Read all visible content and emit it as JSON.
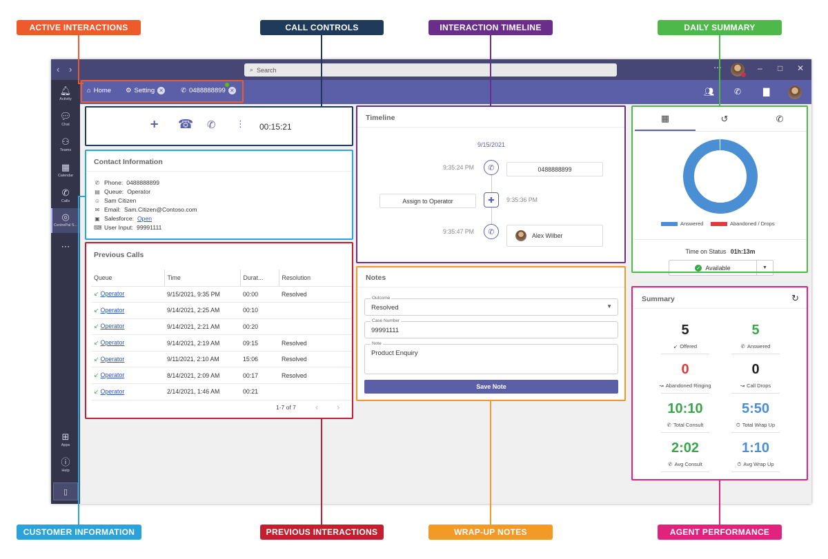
{
  "callouts": {
    "active_interactions": "ACTIVE INTERACTIONS",
    "call_controls": "CALL CONTROLS",
    "interaction_timeline": "INTERACTION TIMELINE",
    "daily_summary": "DAILY SUMMARY",
    "customer_information": "CUSTOMER INFORMATION",
    "previous_interactions": "PREVIOUS INTERACTIONS",
    "wrapup_notes": "WRAP-UP NOTES",
    "agent_performance": "AGENT PERFORMANCE"
  },
  "titlebar": {
    "search_placeholder": "Search"
  },
  "rail": {
    "items": [
      {
        "label": "Activity",
        "icon": "bell-icon"
      },
      {
        "label": "Chat",
        "icon": "chat-icon"
      },
      {
        "label": "Teams",
        "icon": "teams-icon"
      },
      {
        "label": "Calendar",
        "icon": "calendar-icon"
      },
      {
        "label": "Calls",
        "icon": "phone-icon"
      },
      {
        "label": "CentrePal S...",
        "icon": "centrepal-icon"
      },
      {
        "label": "Apps",
        "icon": "apps-icon"
      },
      {
        "label": "Help",
        "icon": "help-icon"
      }
    ]
  },
  "tabs": {
    "home": "Home",
    "setting": "Setting",
    "call": "0488888899"
  },
  "call_controls": {
    "timer": "00:15:21"
  },
  "contact": {
    "title": "Contact Information",
    "phone_label": "Phone:",
    "phone": "0488888899",
    "queue_label": "Queue:",
    "queue": "Operator",
    "name": "Sam Citizen",
    "email_label": "Email:",
    "email": "Sam.Citizen@Contoso.com",
    "salesforce_label": "Salesforce:",
    "salesforce_link": "Open",
    "user_input_label": "User Input:",
    "user_input": "99991111"
  },
  "previous_calls": {
    "title": "Previous Calls",
    "columns": [
      "Queue",
      "Time",
      "Durat...",
      "Resolution"
    ],
    "rows": [
      {
        "queue": "Operator",
        "time": "9/15/2021, 9:35 PM",
        "duration": "00:00",
        "resolution": "Resolved"
      },
      {
        "queue": "Operator",
        "time": "9/14/2021, 2:25 AM",
        "duration": "00:10",
        "resolution": ""
      },
      {
        "queue": "Operator",
        "time": "9/14/2021, 2:21 AM",
        "duration": "00:20",
        "resolution": ""
      },
      {
        "queue": "Operator",
        "time": "9/14/2021, 2:19 AM",
        "duration": "09:15",
        "resolution": "Resolved"
      },
      {
        "queue": "Operator",
        "time": "9/11/2021, 2:10 AM",
        "duration": "15:06",
        "resolution": "Resolved"
      },
      {
        "queue": "Operator",
        "time": "8/14/2021, 2:09 AM",
        "duration": "00:17",
        "resolution": "Resolved"
      },
      {
        "queue": "Operator",
        "time": "2/14/2021, 1:46 AM",
        "duration": "00:21",
        "resolution": ""
      }
    ],
    "pagination": "1-7 of 7"
  },
  "timeline": {
    "title": "Timeline",
    "date": "9/15/2021",
    "events": [
      {
        "time": "9:35:24 PM",
        "text": "0488888899"
      },
      {
        "time": "9:35:36 PM",
        "text": "Assign to Operator"
      },
      {
        "time": "9:35:47 PM",
        "text": "Alex Wilber"
      }
    ]
  },
  "notes": {
    "title": "Notes",
    "outcome_label": "Outcome",
    "outcome_value": "Resolved",
    "case_label": "Case Number",
    "case_value": "99991111",
    "note_label": "Note",
    "note_value": "Product Enquiry",
    "save_label": "Save Note"
  },
  "daily_summary": {
    "legend_answered": "Answered",
    "legend_abandoned": "Abandoned / Drops",
    "answered_color": "#4a8fd4",
    "abandoned_color": "#e03a3a",
    "answered_share": 1.0,
    "time_on_status_label": "Time on Status",
    "time_on_status_value": "01h:13m",
    "status": "Available"
  },
  "summary": {
    "title": "Summary",
    "stats": [
      {
        "value": "5",
        "label": "Offered",
        "color": "#222222",
        "icon": "incoming-arrow-icon"
      },
      {
        "value": "5",
        "label": "Answered",
        "color": "#3aa64a",
        "icon": "phone-icon"
      },
      {
        "value": "0",
        "label": "Abandoned Ringing",
        "color": "#e03a3a",
        "icon": "missed-call-icon"
      },
      {
        "value": "0",
        "label": "Call Drops",
        "color": "#222222",
        "icon": "missed-call-icon"
      },
      {
        "value": "10:10",
        "label": "Total Consult",
        "color": "#3aa64a",
        "icon": "phone-icon"
      },
      {
        "value": "5:50",
        "label": "Total Wrap Up",
        "color": "#4a8fd4",
        "icon": "stopwatch-icon"
      },
      {
        "value": "2:02",
        "label": "Avg Consult",
        "color": "#3aa64a",
        "icon": "phone-icon"
      },
      {
        "value": "1:10",
        "label": "Avg Wrap Up",
        "color": "#4a8fd4",
        "icon": "stopwatch-icon"
      }
    ]
  }
}
